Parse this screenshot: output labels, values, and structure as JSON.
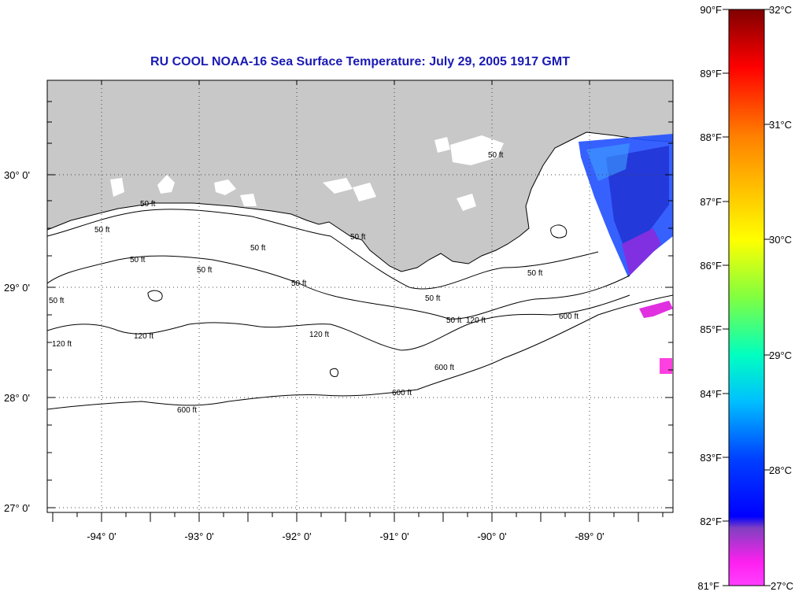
{
  "title": "RU COOL  NOAA-16  Sea Surface Temperature:  July 29, 2005 1917 GMT",
  "latitude_labels": [
    "30° 0'",
    "29° 0'",
    "28° 0'",
    "27° 0'"
  ],
  "longitude_labels": [
    "-94° 0'",
    "-93° 0'",
    "-92° 0'",
    "-91° 0'",
    "-90° 0'",
    "-89° 0'"
  ],
  "contour_labels": {
    "c50": "50 ft",
    "c120": "120 ft",
    "c600": "600 ft"
  },
  "colorbar": {
    "fahrenheit": [
      "90°F",
      "89°F",
      "88°F",
      "87°F",
      "86°F",
      "85°F",
      "84°F",
      "83°F",
      "82°F",
      "81°F"
    ],
    "celsius": [
      "32°C",
      "31°C",
      "30°C",
      "29°C",
      "28°C",
      "27°C"
    ],
    "gradient_colors": [
      "#8b0000",
      "#ff0000",
      "#ff8000",
      "#ffff00",
      "#80ff40",
      "#00ffc0",
      "#00c0ff",
      "#0040ff",
      "#0000ff",
      "#8040c0",
      "#ff00ff",
      "#ff40ff"
    ]
  },
  "colors": {
    "land": "#c8c8c8",
    "title": "#1a1ab4",
    "grid": "#444444"
  }
}
